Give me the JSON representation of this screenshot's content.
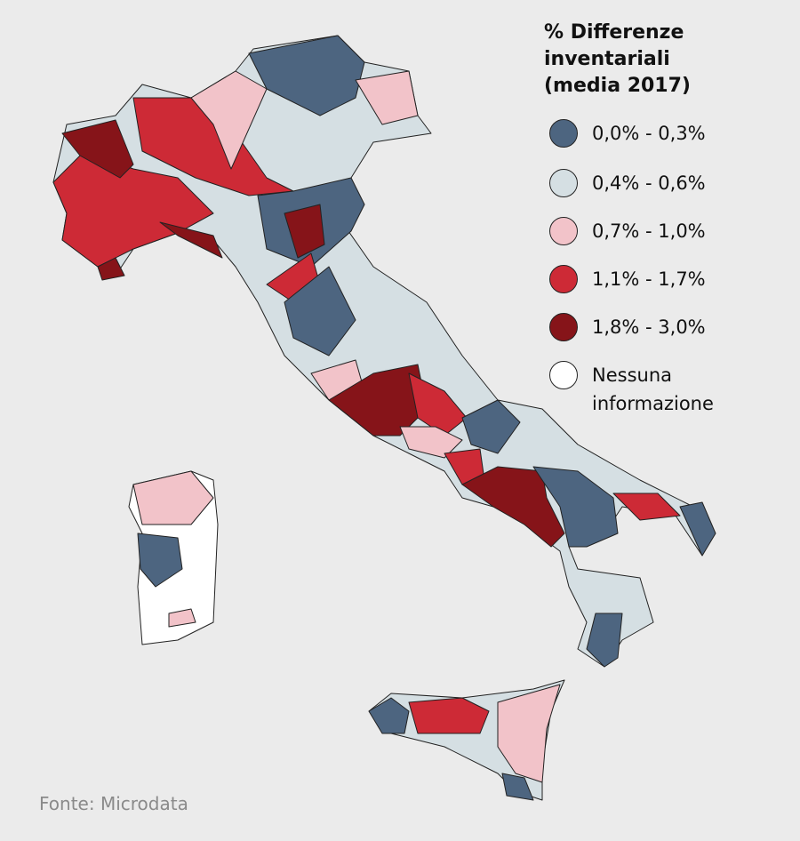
{
  "legend": {
    "title": "% Differenze inventariali (media 2017)",
    "entries": [
      {
        "label": "0,0% - 0,3%",
        "color": "#4d6580"
      },
      {
        "label": "0,4% - 0,6%",
        "color": "#d5dfe3"
      },
      {
        "label": "0,7% - 1,0%",
        "color": "#f2c3c9"
      },
      {
        "label": "1,1% - 1,7%",
        "color": "#cd2a36"
      },
      {
        "label": "1,8% - 3,0%",
        "color": "#861419"
      },
      {
        "label": "Nessuna informazione",
        "color": "#ffffff"
      }
    ]
  },
  "source": "Fonte: Microdata"
}
